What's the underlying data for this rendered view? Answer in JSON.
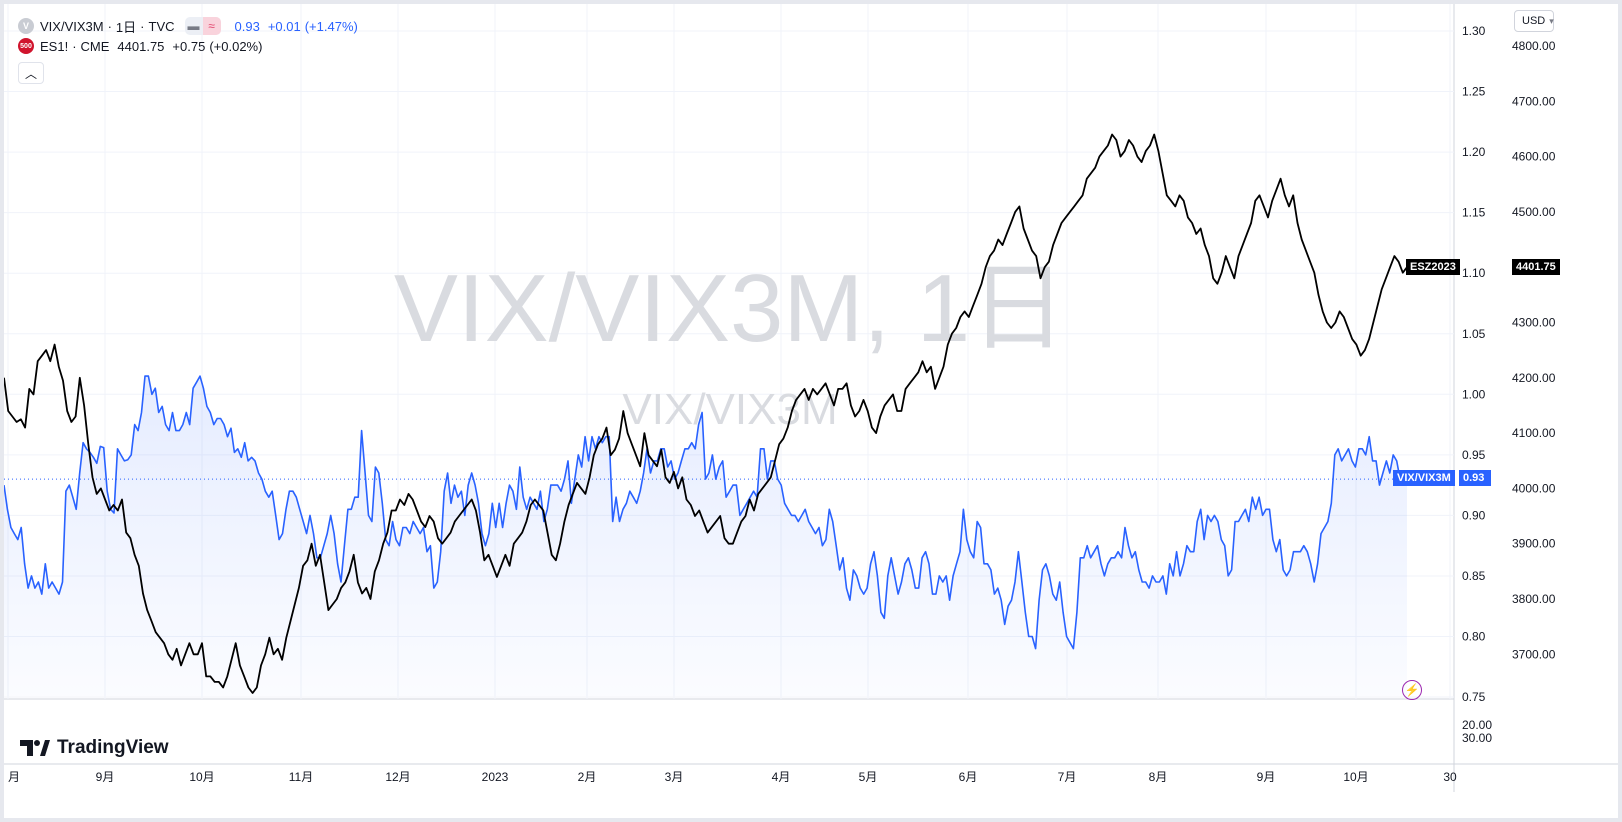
{
  "legend": {
    "main": {
      "icon": "V",
      "symbol": "VIX/VIX3M",
      "interval": "1日",
      "exchange": "TVC",
      "value": "0.93",
      "change": "+0.01",
      "change_pct": "(+1.47%)"
    },
    "overlay": {
      "icon": "500",
      "symbol": "ES1!",
      "exchange": "CME",
      "value": "4401.75",
      "change": "+0.75",
      "change_pct": "(+0.02%)"
    },
    "collapse_icon": "chevron-up-icon"
  },
  "watermark": {
    "large": "VIX/VIX3M, 1日",
    "small": "VIX/VIX3M"
  },
  "currency": {
    "label": "USD"
  },
  "right_axis": {
    "ratio_ticks": [
      "1.30",
      "1.25",
      "1.20",
      "1.15",
      "1.10",
      "1.05",
      "1.00",
      "0.95",
      "0.90",
      "0.85",
      "0.80",
      "0.75"
    ],
    "es_ticks": [
      "4800.00",
      "4700.00",
      "4600.00",
      "4500.00",
      "4400.00",
      "4300.00",
      "4200.00",
      "4100.00",
      "4000.00",
      "3900.00",
      "3800.00",
      "3700.00"
    ],
    "pane2_ticks": [
      "20.00",
      "30.00"
    ]
  },
  "time_axis": {
    "labels": [
      "月",
      "9月",
      "10月",
      "11月",
      "12月",
      "2023",
      "2月",
      "3月",
      "4月",
      "5月",
      "6月",
      "7月",
      "8月",
      "9月",
      "10月",
      "30"
    ]
  },
  "tags": {
    "es_label": "ESZ2023",
    "es_price": "4401.75",
    "ratio_label": "VIX/VIX3M",
    "ratio_price": "0.93"
  },
  "logo": {
    "text": "TradingView"
  },
  "colors": {
    "ratio_line": "#2962ff",
    "es_line": "#000000",
    "area_fill": "#2962ff",
    "tag_es_bg": "#000000",
    "tag_ratio_bg": "#2962ff",
    "lightning": "#9c27b0"
  },
  "chart_data": [
    {
      "type": "line",
      "title": "VIX/VIX3M, 1日",
      "ylim": [
        0.75,
        1.3
      ],
      "x_range": [
        "2022-08",
        "2023-10"
      ],
      "series": [
        {
          "name": "VIX/VIX3M",
          "values": [
            0.925,
            0.905,
            0.89,
            0.885,
            0.88,
            0.89,
            0.86,
            0.84,
            0.85,
            0.84,
            0.845,
            0.835,
            0.86,
            0.84,
            0.845,
            0.84,
            0.835,
            0.845,
            0.92,
            0.925,
            0.915,
            0.905,
            0.935,
            0.96,
            0.955,
            0.952,
            0.948,
            0.943,
            0.957,
            0.956,
            0.92,
            0.905,
            0.902,
            0.955,
            0.95,
            0.945,
            0.946,
            0.95,
            0.975,
            0.97,
            0.985,
            1.015,
            1.015,
            1.0,
            1.005,
            0.985,
            0.99,
            0.975,
            0.97,
            0.985,
            0.97,
            0.97,
            0.975,
            0.985,
            0.975,
            1.005,
            1.01,
            1.015,
            1.005,
            0.99,
            0.985,
            0.975,
            0.98,
            0.98,
            0.975,
            0.965,
            0.972,
            0.952,
            0.955,
            0.948,
            0.96,
            0.945,
            0.948,
            0.945,
            0.935,
            0.93,
            0.92,
            0.915,
            0.92,
            0.9,
            0.88,
            0.885,
            0.905,
            0.92,
            0.92,
            0.915,
            0.905,
            0.895,
            0.885,
            0.9,
            0.885,
            0.865,
            0.865,
            0.875,
            0.885,
            0.9,
            0.885,
            0.86,
            0.845,
            0.875,
            0.905,
            0.905,
            0.915,
            0.915,
            0.97,
            0.935,
            0.9,
            0.895,
            0.94,
            0.935,
            0.91,
            0.88,
            0.875,
            0.895,
            0.88,
            0.875,
            0.89,
            0.89,
            0.885,
            0.895,
            0.89,
            0.885,
            0.89,
            0.87,
            0.875,
            0.84,
            0.845,
            0.87,
            0.92,
            0.935,
            0.91,
            0.925,
            0.915,
            0.92,
            0.9,
            0.925,
            0.935,
            0.925,
            0.91,
            0.885,
            0.875,
            0.885,
            0.91,
            0.89,
            0.91,
            0.89,
            0.91,
            0.925,
            0.92,
            0.905,
            0.94,
            0.915,
            0.905,
            0.915,
            0.91,
            0.905,
            0.92,
            0.895,
            0.905,
            0.925,
            0.925,
            0.925,
            0.92,
            0.93,
            0.945,
            0.91,
            0.93,
            0.95,
            0.94,
            0.965,
            0.945,
            0.965,
            0.955,
            0.965,
            0.96,
            0.965,
            0.965,
            0.895,
            0.915,
            0.895,
            0.905,
            0.91,
            0.92,
            0.915,
            0.91,
            0.92,
            0.935,
            0.955,
            0.935,
            0.945,
            0.945,
            0.955,
            0.955,
            0.94,
            0.945,
            0.93,
            0.935,
            0.945,
            0.955,
            0.955,
            0.96,
            0.955,
            0.975,
            0.985,
            0.93,
            0.935,
            0.95,
            0.93,
            0.94,
            0.945,
            0.915,
            0.92,
            0.925,
            0.925,
            0.9,
            0.905,
            0.91,
            0.915,
            0.92,
            0.915,
            0.955,
            0.955,
            0.93,
            0.945,
            0.945,
            0.93,
            0.925,
            0.91,
            0.905,
            0.9,
            0.9,
            0.895,
            0.9,
            0.905,
            0.895,
            0.89,
            0.885,
            0.89,
            0.875,
            0.88,
            0.905,
            0.895,
            0.875,
            0.855,
            0.865,
            0.84,
            0.83,
            0.855,
            0.85,
            0.84,
            0.835,
            0.84,
            0.86,
            0.87,
            0.85,
            0.82,
            0.815,
            0.85,
            0.865,
            0.85,
            0.835,
            0.845,
            0.86,
            0.865,
            0.855,
            0.84,
            0.84,
            0.865,
            0.87,
            0.86,
            0.835,
            0.835,
            0.85,
            0.845,
            0.85,
            0.83,
            0.85,
            0.86,
            0.87,
            0.905,
            0.88,
            0.87,
            0.865,
            0.895,
            0.89,
            0.86,
            0.86,
            0.855,
            0.835,
            0.84,
            0.83,
            0.81,
            0.825,
            0.83,
            0.845,
            0.87,
            0.845,
            0.82,
            0.8,
            0.8,
            0.79,
            0.83,
            0.855,
            0.86,
            0.85,
            0.835,
            0.83,
            0.845,
            0.82,
            0.8,
            0.795,
            0.79,
            0.82,
            0.865,
            0.865,
            0.875,
            0.865,
            0.87,
            0.875,
            0.86,
            0.85,
            0.86,
            0.865,
            0.865,
            0.87,
            0.865,
            0.89,
            0.875,
            0.865,
            0.87,
            0.855,
            0.845,
            0.845,
            0.84,
            0.85,
            0.845,
            0.845,
            0.85,
            0.835,
            0.86,
            0.85,
            0.87,
            0.85,
            0.86,
            0.875,
            0.87,
            0.87,
            0.895,
            0.905,
            0.88,
            0.9,
            0.895,
            0.9,
            0.895,
            0.88,
            0.875,
            0.85,
            0.855,
            0.895,
            0.895,
            0.9,
            0.905,
            0.895,
            0.915,
            0.905,
            0.915,
            0.9,
            0.905,
            0.905,
            0.88,
            0.87,
            0.88,
            0.855,
            0.85,
            0.855,
            0.87,
            0.87,
            0.87,
            0.875,
            0.87,
            0.86,
            0.845,
            0.86,
            0.885,
            0.89,
            0.895,
            0.91,
            0.95,
            0.955,
            0.945,
            0.95,
            0.955,
            0.945,
            0.94,
            0.955,
            0.955,
            0.95,
            0.965,
            0.945,
            0.945,
            0.925,
            0.935,
            0.945,
            0.935,
            0.95,
            0.945,
            0.93,
            0.93,
            0.935
          ]
        },
        {
          "name": "ES1!",
          "values": [
            4200,
            4140,
            4130,
            4120,
            4125,
            4110,
            4180,
            4170,
            4230,
            4240,
            4250,
            4230,
            4260,
            4220,
            4195,
            4140,
            4120,
            4130,
            4200,
            4150,
            4080,
            4020,
            3990,
            4000,
            3980,
            3960,
            3970,
            3960,
            3980,
            3920,
            3910,
            3880,
            3860,
            3810,
            3780,
            3760,
            3740,
            3730,
            3720,
            3700,
            3690,
            3710,
            3680,
            3700,
            3720,
            3700,
            3700,
            3720,
            3660,
            3660,
            3650,
            3650,
            3640,
            3660,
            3690,
            3720,
            3680,
            3660,
            3640,
            3630,
            3640,
            3680,
            3700,
            3730,
            3700,
            3710,
            3690,
            3730,
            3760,
            3790,
            3820,
            3860,
            3870,
            3900,
            3860,
            3880,
            3830,
            3780,
            3790,
            3800,
            3820,
            3830,
            3850,
            3880,
            3830,
            3810,
            3820,
            3800,
            3850,
            3870,
            3900,
            3920,
            3960,
            3960,
            3980,
            3970,
            3990,
            3980,
            3960,
            3940,
            3930,
            3950,
            3940,
            3910,
            3900,
            3910,
            3920,
            3940,
            3950,
            3960,
            3970,
            3980,
            3960,
            3920,
            3870,
            3880,
            3860,
            3840,
            3860,
            3880,
            3860,
            3900,
            3910,
            3920,
            3940,
            3970,
            3980,
            3970,
            3960,
            3920,
            3880,
            3870,
            3900,
            3940,
            3970,
            3990,
            4010,
            4000,
            3990,
            4020,
            4060,
            4080,
            4090,
            4110,
            4060,
            4070,
            4090,
            4140,
            4100,
            4080,
            4060,
            4040,
            4100,
            4060,
            4050,
            4040,
            4070,
            4020,
            4010,
            4030,
            4000,
            4020,
            3980,
            3970,
            3950,
            3960,
            3940,
            3920,
            3930,
            3940,
            3950,
            3910,
            3900,
            3900,
            3920,
            3940,
            3950,
            3980,
            3960,
            3990,
            4000,
            4010,
            4020,
            4050,
            4080,
            4090,
            4110,
            4140,
            4160,
            4170,
            4180,
            4160,
            4180,
            4170,
            4180,
            4190,
            4170,
            4150,
            4180,
            4180,
            4190,
            4150,
            4130,
            4140,
            4160,
            4140,
            4110,
            4100,
            4130,
            4150,
            4160,
            4170,
            4140,
            4140,
            4180,
            4190,
            4200,
            4210,
            4230,
            4210,
            4220,
            4180,
            4200,
            4220,
            4260,
            4280,
            4290,
            4310,
            4320,
            4310,
            4330,
            4350,
            4370,
            4400,
            4420,
            4430,
            4450,
            4440,
            4460,
            4480,
            4500,
            4510,
            4470,
            4450,
            4430,
            4420,
            4380,
            4400,
            4410,
            4440,
            4460,
            4480,
            4490,
            4500,
            4510,
            4520,
            4530,
            4560,
            4570,
            4580,
            4600,
            4610,
            4620,
            4640,
            4630,
            4600,
            4610,
            4630,
            4620,
            4600,
            4590,
            4610,
            4620,
            4640,
            4610,
            4570,
            4530,
            4520,
            4510,
            4530,
            4520,
            4490,
            4480,
            4460,
            4470,
            4440,
            4420,
            4380,
            4370,
            4390,
            4420,
            4400,
            4380,
            4420,
            4440,
            4460,
            4480,
            4520,
            4530,
            4510,
            4490,
            4520,
            4540,
            4560,
            4530,
            4510,
            4530,
            4480,
            4450,
            4430,
            4410,
            4390,
            4350,
            4320,
            4300,
            4290,
            4300,
            4320,
            4310,
            4290,
            4270,
            4260,
            4240,
            4250,
            4270,
            4300,
            4330,
            4360,
            4380,
            4400,
            4420,
            4410,
            4390,
            4400
          ]
        }
      ]
    }
  ]
}
